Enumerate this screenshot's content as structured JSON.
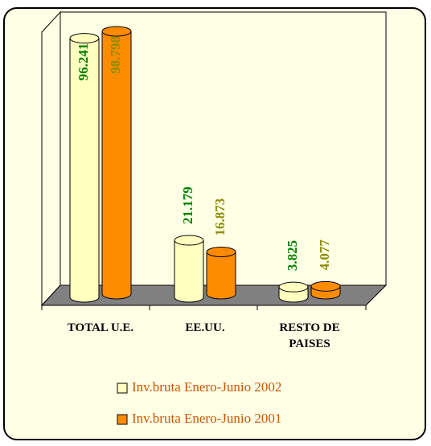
{
  "chart_data": {
    "type": "bar3d",
    "categories": [
      "TOTAL U.E.",
      "EE.UU.",
      "RESTO DE PAISES"
    ],
    "series": [
      {
        "name": "Inv.bruta Enero-Junio 2002",
        "color": "#ffffc0",
        "label_color": "#008000",
        "values": [
          96.241,
          21.179,
          3.825
        ]
      },
      {
        "name": "Inv.bruta Enero-Junio 2001",
        "color": "#ff8c00",
        "label_color": "#8c8c00",
        "values": [
          98.798,
          16.873,
          4.077
        ]
      }
    ],
    "ylim": [
      0,
      100
    ]
  }
}
